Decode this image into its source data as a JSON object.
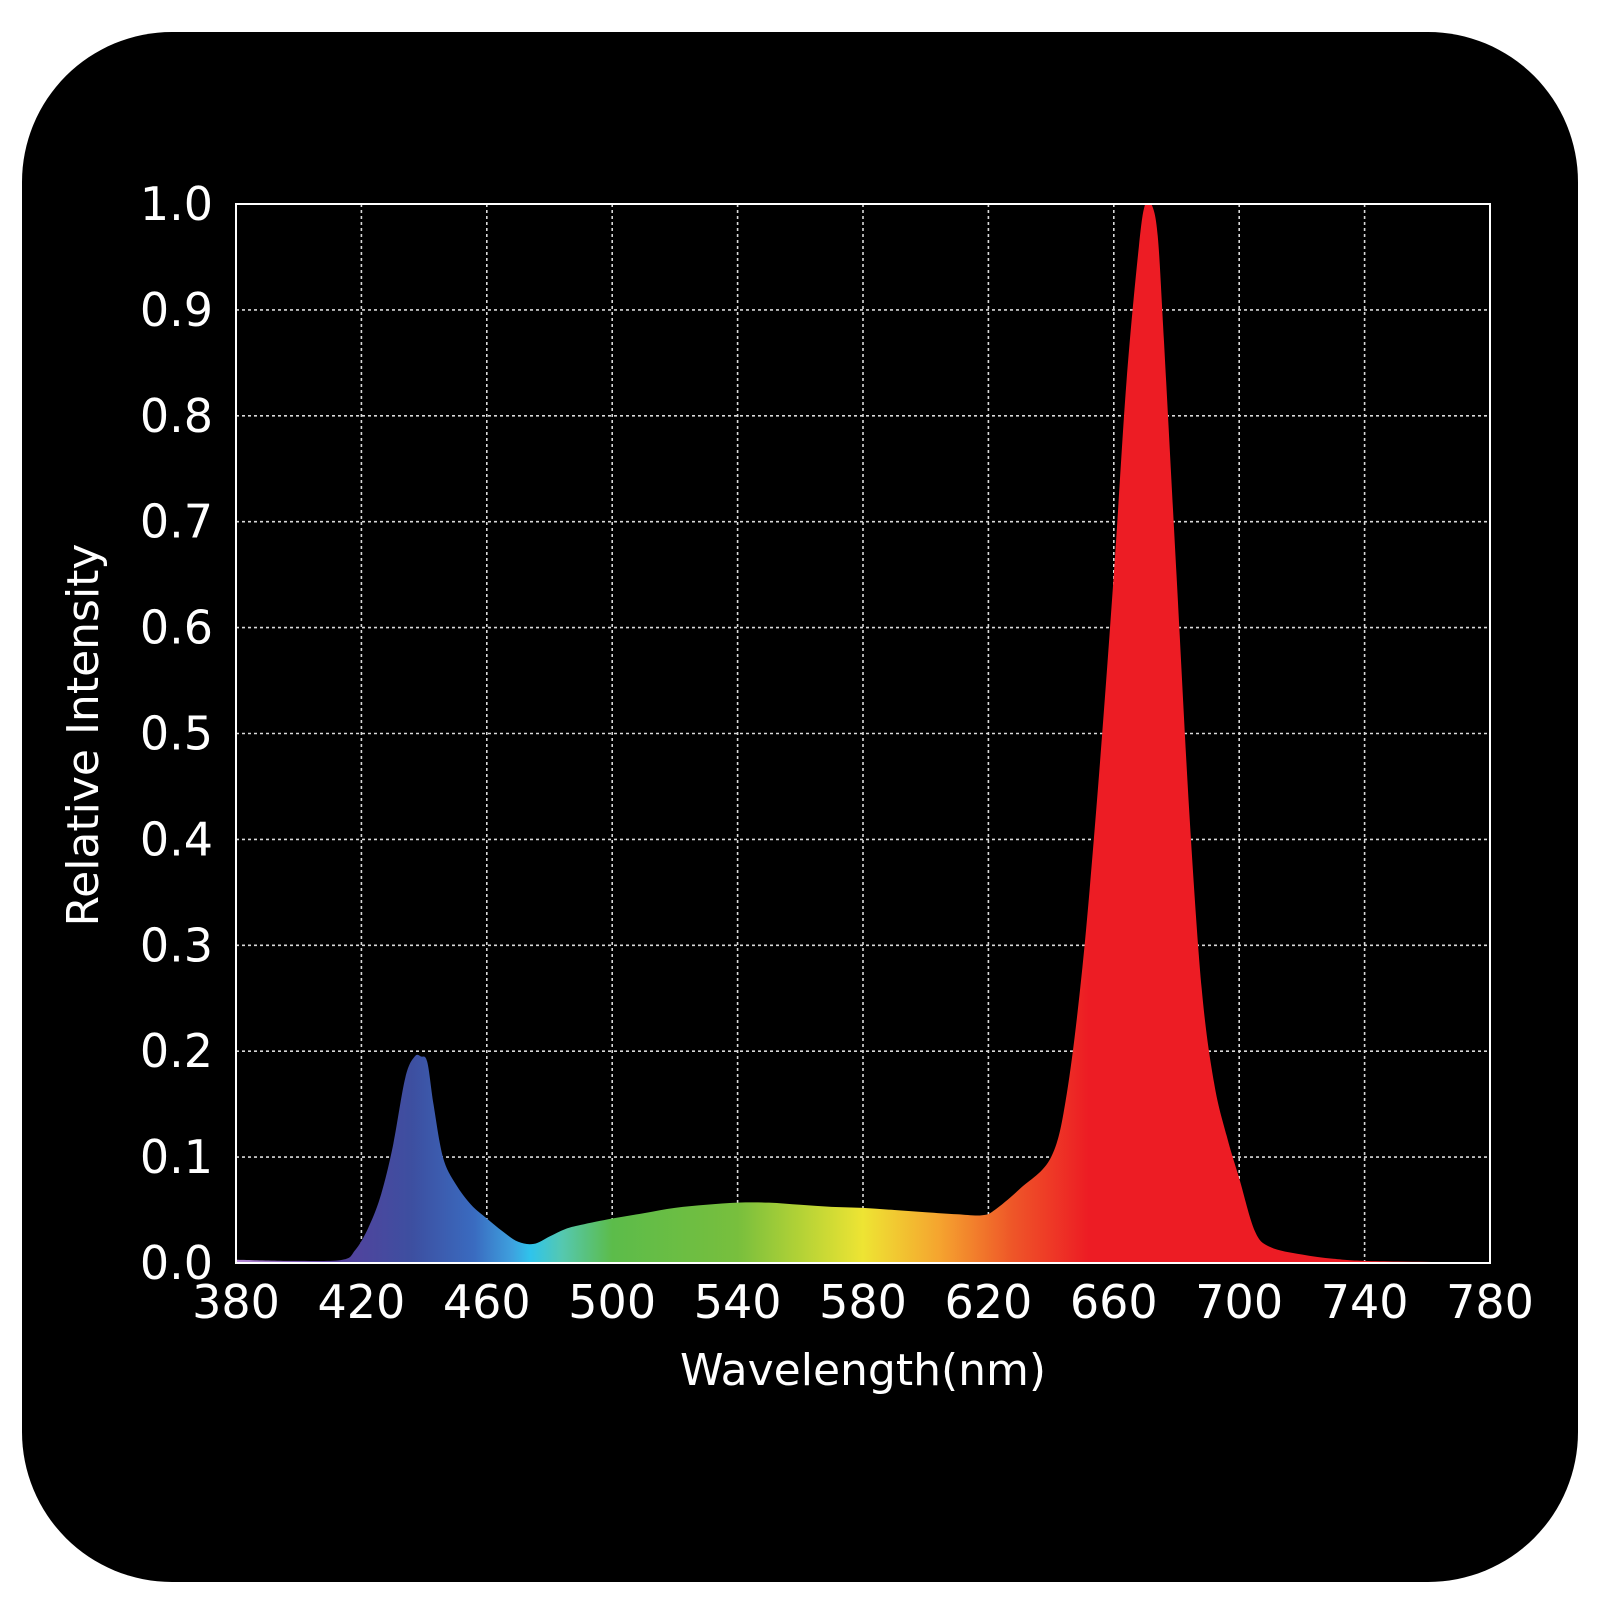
{
  "chart_data": {
    "type": "area",
    "title": "",
    "xlabel": "Wavelength(nm)",
    "ylabel": "Relative Intensity",
    "xlim": [
      380,
      780
    ],
    "ylim": [
      0.0,
      1.0
    ],
    "x_ticks": [
      "380",
      "420",
      "460",
      "500",
      "540",
      "580",
      "620",
      "660",
      "700",
      "740",
      "780"
    ],
    "y_ticks": [
      "0.0",
      "0.1",
      "0.2",
      "0.3",
      "0.4",
      "0.5",
      "0.6",
      "0.7",
      "0.8",
      "0.9",
      "1.0"
    ],
    "grid": true,
    "legend": false,
    "background_color": "#000000",
    "fill_gradient": "visible spectrum (violet to red)",
    "series": [
      {
        "x": [
          380,
          400,
          414,
          418,
          422,
          426,
          430,
          434,
          437,
          439,
          441,
          443,
          446,
          450,
          455,
          460,
          465,
          470,
          475,
          480,
          485,
          490,
          500,
          510,
          520,
          530,
          540,
          550,
          560,
          570,
          580,
          590,
          600,
          610,
          618,
          622,
          630,
          640,
          645,
          650,
          655,
          660,
          664,
          668,
          670,
          672,
          674,
          676,
          680,
          684,
          688,
          692,
          696,
          700,
          705,
          710,
          720,
          730,
          740,
          760,
          780
        ],
        "y": [
          0.003,
          0.002,
          0.003,
          0.012,
          0.032,
          0.062,
          0.11,
          0.175,
          0.195,
          0.195,
          0.19,
          0.15,
          0.1,
          0.075,
          0.055,
          0.042,
          0.03,
          0.02,
          0.018,
          0.025,
          0.032,
          0.036,
          0.042,
          0.047,
          0.052,
          0.055,
          0.057,
          0.057,
          0.055,
          0.053,
          0.052,
          0.05,
          0.048,
          0.046,
          0.045,
          0.05,
          0.07,
          0.1,
          0.16,
          0.28,
          0.45,
          0.65,
          0.83,
          0.96,
          1.0,
          1.0,
          0.97,
          0.87,
          0.65,
          0.43,
          0.26,
          0.17,
          0.12,
          0.08,
          0.03,
          0.015,
          0.008,
          0.004,
          0.002,
          0.001,
          0.0
        ]
      }
    ]
  }
}
